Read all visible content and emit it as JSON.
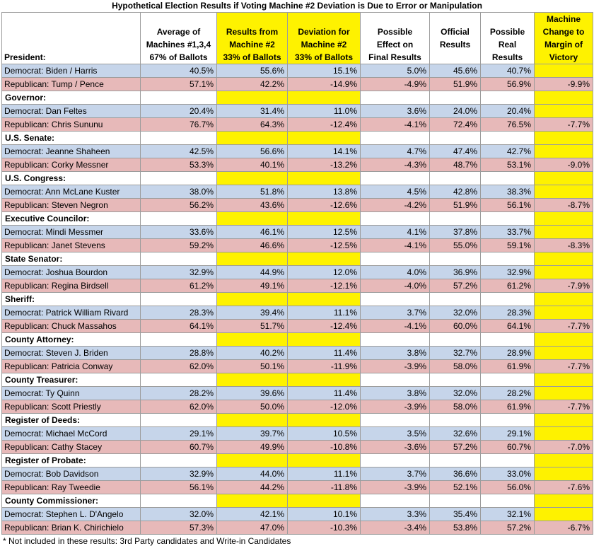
{
  "title": "Hypothetical Election Results if Voting Machine #2 Deviation is Due to Error or Manipulation",
  "headers": {
    "label": "President:",
    "col1": [
      "Average of",
      "Machines #1,3,4",
      "67% of Ballots"
    ],
    "col2": [
      "Results from",
      "Machine #2",
      "33% of Ballots"
    ],
    "col3": [
      "Deviation for",
      "Machine #2",
      "33% of Ballots"
    ],
    "col4": [
      "Possible",
      "Effect on",
      "Final Results"
    ],
    "col5": [
      "Official",
      "Results"
    ],
    "col6": [
      "Possible",
      "Real",
      "Results"
    ],
    "col7": [
      "Machine",
      "Change to",
      "Margin of",
      "Victory"
    ]
  },
  "races": [
    {
      "office": "President:",
      "dem": {
        "name": "Democrat: Biden / Harris",
        "vals": [
          "40.5%",
          "55.6%",
          "15.1%",
          "5.0%",
          "45.6%",
          "40.7%"
        ]
      },
      "rep": {
        "name": "Republican: Tump / Pence",
        "vals": [
          "57.1%",
          "42.2%",
          "-14.9%",
          "-4.9%",
          "51.9%",
          "56.9%"
        ]
      },
      "margin": "-9.9%"
    },
    {
      "office": "Governor:",
      "dem": {
        "name": "Democrat: Dan Feltes",
        "vals": [
          "20.4%",
          "31.4%",
          "11.0%",
          "3.6%",
          "24.0%",
          "20.4%"
        ]
      },
      "rep": {
        "name": "Republican: Chris Sununu",
        "vals": [
          "76.7%",
          "64.3%",
          "-12.4%",
          "-4.1%",
          "72.4%",
          "76.5%"
        ]
      },
      "margin": "-7.7%"
    },
    {
      "office": "U.S. Senate:",
      "dem": {
        "name": "Democrat: Jeanne Shaheen",
        "vals": [
          "42.5%",
          "56.6%",
          "14.1%",
          "4.7%",
          "47.4%",
          "42.7%"
        ]
      },
      "rep": {
        "name": "Republican: Corky Messner",
        "vals": [
          "53.3%",
          "40.1%",
          "-13.2%",
          "-4.3%",
          "48.7%",
          "53.1%"
        ]
      },
      "margin": "-9.0%"
    },
    {
      "office": "U.S. Congress:",
      "dem": {
        "name": "Democrat: Ann McLane Kuster",
        "vals": [
          "38.0%",
          "51.8%",
          "13.8%",
          "4.5%",
          "42.8%",
          "38.3%"
        ]
      },
      "rep": {
        "name": "Republican: Steven Negron",
        "vals": [
          "56.2%",
          "43.6%",
          "-12.6%",
          "-4.2%",
          "51.9%",
          "56.1%"
        ]
      },
      "margin": "-8.7%"
    },
    {
      "office": "Executive Councilor:",
      "dem": {
        "name": "Democrat: Mindi Messmer",
        "vals": [
          "33.6%",
          "46.1%",
          "12.5%",
          "4.1%",
          "37.8%",
          "33.7%"
        ]
      },
      "rep": {
        "name": "Republican: Janet Stevens",
        "vals": [
          "59.2%",
          "46.6%",
          "-12.5%",
          "-4.1%",
          "55.0%",
          "59.1%"
        ]
      },
      "margin": "-8.3%"
    },
    {
      "office": "State Senator:",
      "dem": {
        "name": "Democrat: Joshua Bourdon",
        "vals": [
          "32.9%",
          "44.9%",
          "12.0%",
          "4.0%",
          "36.9%",
          "32.9%"
        ]
      },
      "rep": {
        "name": "Republican: Regina Birdsell",
        "vals": [
          "61.2%",
          "49.1%",
          "-12.1%",
          "-4.0%",
          "57.2%",
          "61.2%"
        ]
      },
      "margin": "-7.9%"
    },
    {
      "office": "Sheriff:",
      "dem": {
        "name": "Democrat: Patrick William Rivard",
        "vals": [
          "28.3%",
          "39.4%",
          "11.1%",
          "3.7%",
          "32.0%",
          "28.3%"
        ]
      },
      "rep": {
        "name": "Republican: Chuck Massahos",
        "vals": [
          "64.1%",
          "51.7%",
          "-12.4%",
          "-4.1%",
          "60.0%",
          "64.1%"
        ]
      },
      "margin": "-7.7%"
    },
    {
      "office": "County Attorney:",
      "dem": {
        "name": "Democrat: Steven J. Briden",
        "vals": [
          "28.8%",
          "40.2%",
          "11.4%",
          "3.8%",
          "32.7%",
          "28.9%"
        ]
      },
      "rep": {
        "name": "Republican: Patricia Conway",
        "vals": [
          "62.0%",
          "50.1%",
          "-11.9%",
          "-3.9%",
          "58.0%",
          "61.9%"
        ]
      },
      "margin": "-7.7%"
    },
    {
      "office": "County Treasurer:",
      "dem": {
        "name": "Democrat: Ty Quinn",
        "vals": [
          "28.2%",
          "39.6%",
          "11.4%",
          "3.8%",
          "32.0%",
          "28.2%"
        ]
      },
      "rep": {
        "name": "Republican: Scott Priestly",
        "vals": [
          "62.0%",
          "50.0%",
          "-12.0%",
          "-3.9%",
          "58.0%",
          "61.9%"
        ]
      },
      "margin": "-7.7%"
    },
    {
      "office": "Register of Deeds:",
      "dem": {
        "name": "Democrat: Michael McCord",
        "vals": [
          "29.1%",
          "39.7%",
          "10.5%",
          "3.5%",
          "32.6%",
          "29.1%"
        ]
      },
      "rep": {
        "name": "Republican: Cathy Stacey",
        "vals": [
          "60.7%",
          "49.9%",
          "-10.8%",
          "-3.6%",
          "57.2%",
          "60.7%"
        ]
      },
      "margin": "-7.0%"
    },
    {
      "office": "Register of Probate:",
      "dem": {
        "name": "Democrat: Bob Davidson",
        "vals": [
          "32.9%",
          "44.0%",
          "11.1%",
          "3.7%",
          "36.6%",
          "33.0%"
        ]
      },
      "rep": {
        "name": "Republican: Ray Tweedie",
        "vals": [
          "56.1%",
          "44.2%",
          "-11.8%",
          "-3.9%",
          "52.1%",
          "56.0%"
        ]
      },
      "margin": "-7.6%"
    },
    {
      "office": "County Commissioner:",
      "dem": {
        "name": "Democrat: Stephen L. D'Angelo",
        "vals": [
          "32.0%",
          "42.1%",
          "10.1%",
          "3.3%",
          "35.4%",
          "32.1%"
        ]
      },
      "rep": {
        "name": "Republican: Brian K. Chirichielo",
        "vals": [
          "57.3%",
          "47.0%",
          "-10.3%",
          "-3.4%",
          "53.8%",
          "57.2%"
        ]
      },
      "margin": "-6.7%"
    }
  ],
  "footnote": "* Not included in these results: 3rd Party candidates and Write-in Candidates",
  "colors": {
    "highlight": "#fef200",
    "democrat_row": "#c6d5ea",
    "republican_row": "#e7b9b9"
  }
}
